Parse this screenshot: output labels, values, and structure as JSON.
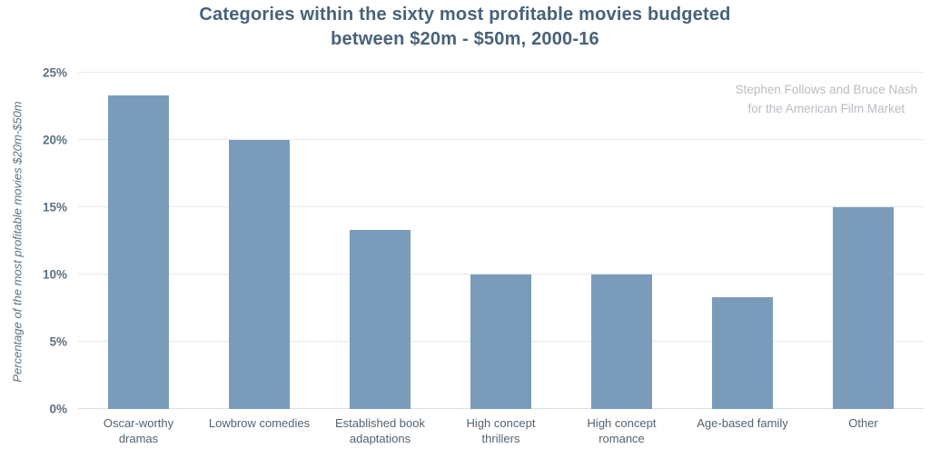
{
  "chart": {
    "title_line1": "Categories within the sixty most profitable movies budgeted",
    "title_line2": "between $20m - $50m, 2000-16",
    "credit_line1": "Stephen Follows and Bruce Nash",
    "credit_line2": "for the American Film Market",
    "y_axis_title": "Percentage of the most profitable movies $20m-$50m"
  },
  "chart_data": {
    "type": "bar",
    "title": "Categories within the sixty most profitable movies budgeted between $20m - $50m, 2000-16",
    "categories": [
      "Oscar-worthy dramas",
      "Lowbrow comedies",
      "Established book adaptations",
      "High concept thrillers",
      "High concept romance",
      "Age-based family",
      "Other"
    ],
    "values": [
      23.3,
      20,
      13.3,
      10,
      10,
      8.3,
      15
    ],
    "xlabel": "",
    "ylabel": "Percentage of the most profitable movies $20m-$50m",
    "ylim": [
      0,
      25
    ],
    "yticks": [
      "0%",
      "5%",
      "10%",
      "15%",
      "20%",
      "25%"
    ],
    "grid": true,
    "legend": "none",
    "bar_color": "#7a9cba",
    "annotation": "Stephen Follows and Bruce Nash for the American Film Market"
  }
}
